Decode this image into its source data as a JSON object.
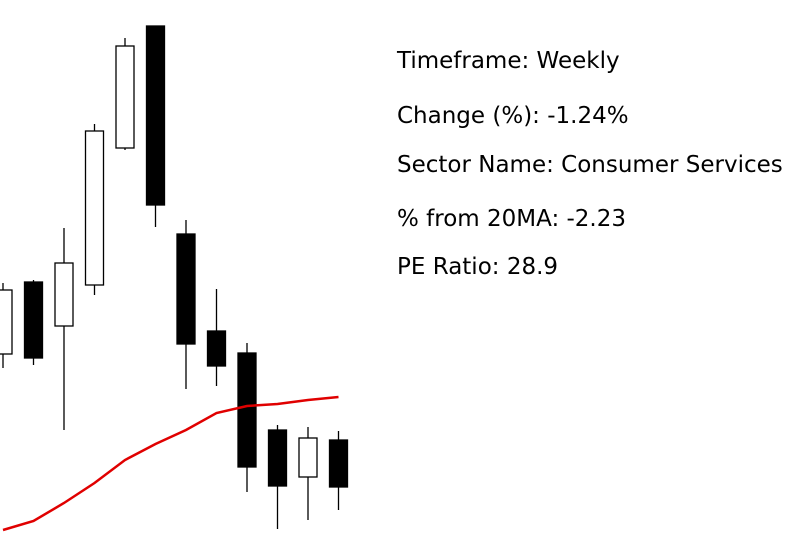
{
  "chart_data": {
    "type": "candlestick",
    "categories": [
      null,
      null,
      null,
      null,
      null,
      null,
      null,
      null,
      null,
      null,
      null,
      null
    ],
    "open": [
      180,
      252,
      208,
      249,
      386,
      508,
      300,
      203,
      181,
      104,
      57,
      94
    ],
    "high": [
      251,
      254,
      306,
      410,
      496,
      508,
      314,
      245,
      191,
      109,
      107,
      103
    ],
    "low": [
      166,
      169,
      104,
      239,
      384,
      307,
      145,
      148,
      42,
      5,
      14,
      24
    ],
    "close": [
      244,
      176,
      271,
      403,
      488,
      329,
      190,
      168,
      67,
      48,
      96,
      47
    ],
    "up_color": "#ffffff",
    "down_color": "#000000",
    "moving_average": {
      "color": "#e00000",
      "values": [
        4,
        13,
        31,
        51,
        74,
        90,
        104,
        121,
        128,
        130,
        134,
        137
      ]
    },
    "ylim": [
      0,
      534
    ],
    "annotations": [
      "Timeframe: Weekly",
      "Change (%): -1.24%",
      "Sector Name: Consumer Services",
      "% from 20MA: -2.23",
      "PE Ratio: 28.9"
    ]
  }
}
